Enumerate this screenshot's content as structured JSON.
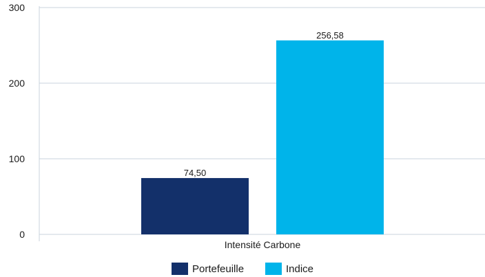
{
  "chart_data": {
    "type": "bar",
    "categories": [
      "Intensité Carbone"
    ],
    "series": [
      {
        "name": "Portefeuille",
        "values": [
          74.5
        ],
        "label": "74,50",
        "color": "#13306a"
      },
      {
        "name": "Indice",
        "values": [
          256.58
        ],
        "label": "256,58",
        "color": "#00b4ea"
      }
    ],
    "ylim": [
      0,
      300
    ],
    "yticks": [
      0,
      100,
      200,
      300
    ],
    "ytick_labels": [
      "0",
      "100",
      "200",
      "300"
    ],
    "grid": true,
    "legend_position": "bottom"
  }
}
